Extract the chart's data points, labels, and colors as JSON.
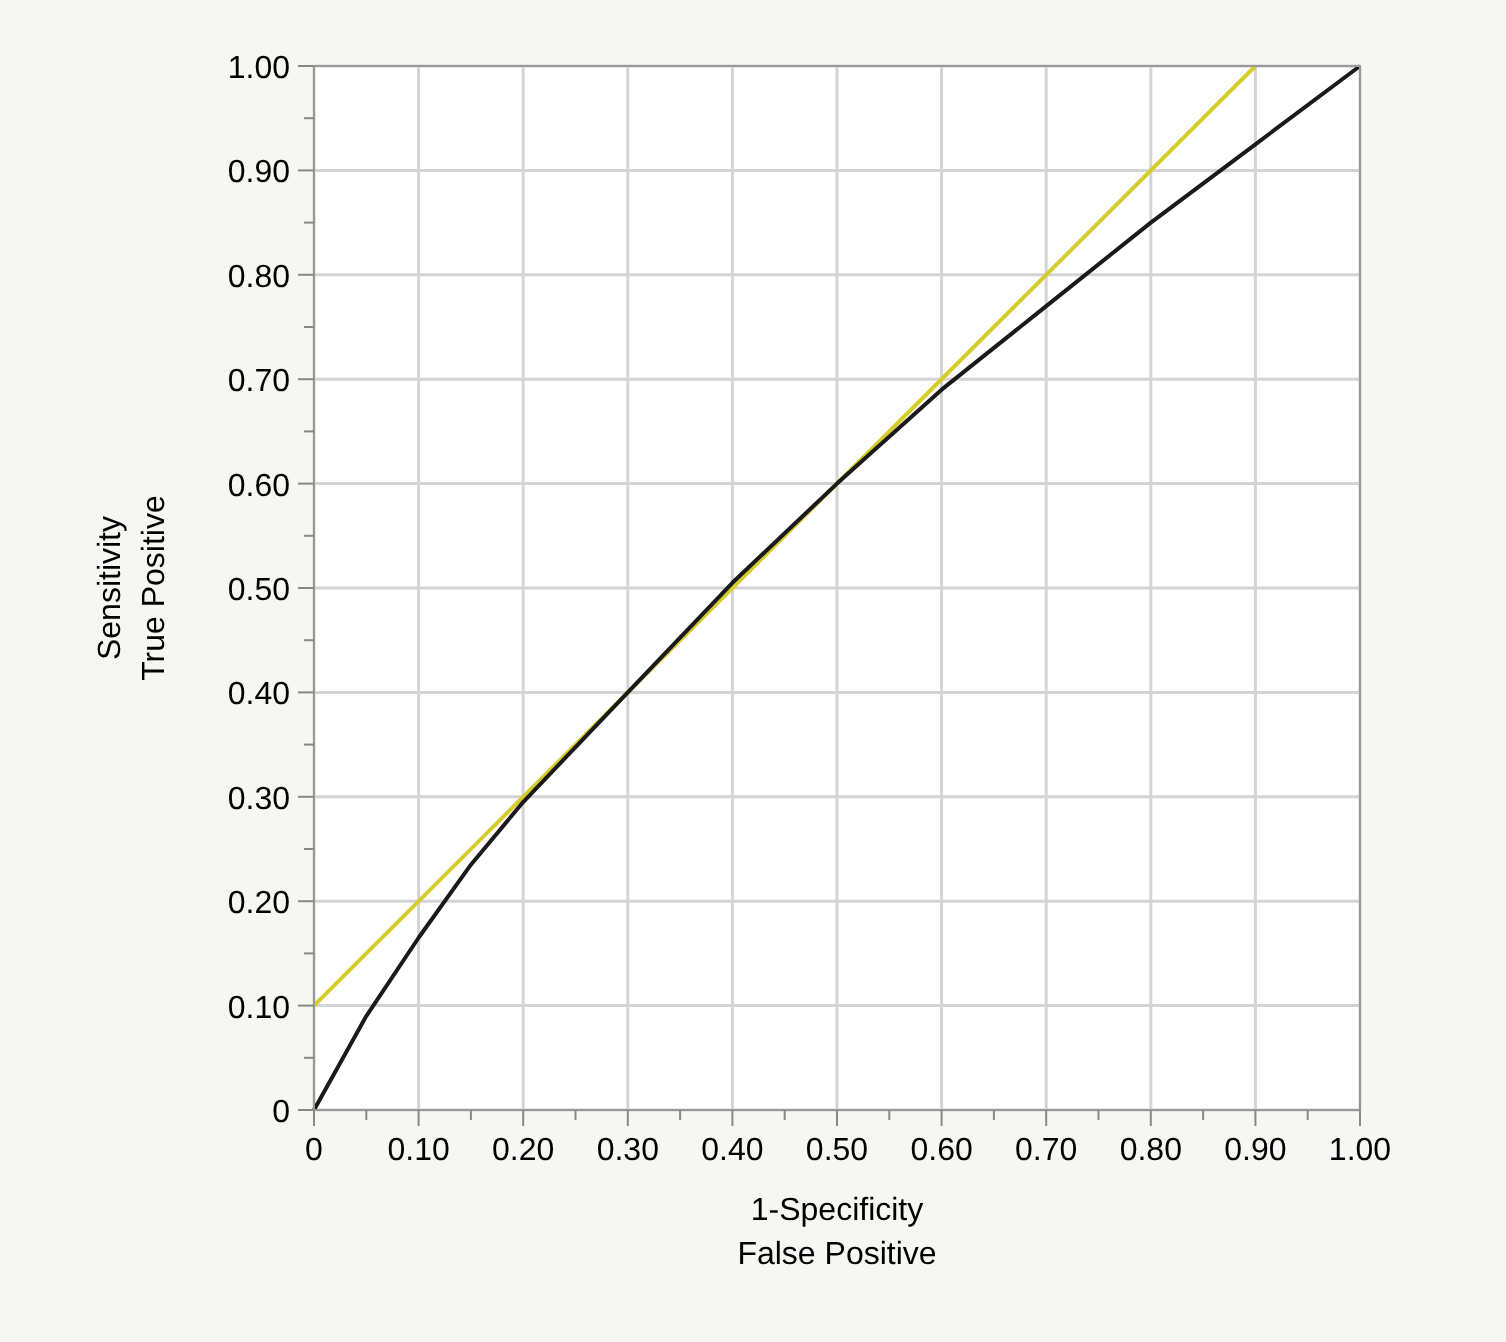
{
  "chart_data": {
    "type": "line",
    "xlabel": "1-Specificity\nFalse Positive",
    "ylabel": "Sensitivity\nTrue Positive",
    "xlim": [
      0,
      1
    ],
    "ylim": [
      0,
      1
    ],
    "xticks": [
      {
        "value": 0,
        "label": "0"
      },
      {
        "value": 0.05,
        "label": null
      },
      {
        "value": 0.1,
        "label": "0.10"
      },
      {
        "value": 0.15,
        "label": null
      },
      {
        "value": 0.2,
        "label": "0.20"
      },
      {
        "value": 0.25,
        "label": null
      },
      {
        "value": 0.3,
        "label": "0.30"
      },
      {
        "value": 0.35,
        "label": null
      },
      {
        "value": 0.4,
        "label": "0.40"
      },
      {
        "value": 0.45,
        "label": null
      },
      {
        "value": 0.5,
        "label": "0.50"
      },
      {
        "value": 0.55,
        "label": null
      },
      {
        "value": 0.6,
        "label": "0.60"
      },
      {
        "value": 0.65,
        "label": null
      },
      {
        "value": 0.7,
        "label": "0.70"
      },
      {
        "value": 0.75,
        "label": null
      },
      {
        "value": 0.8,
        "label": "0.80"
      },
      {
        "value": 0.85,
        "label": null
      },
      {
        "value": 0.9,
        "label": "0.90"
      },
      {
        "value": 0.95,
        "label": null
      },
      {
        "value": 1,
        "label": "1.00"
      }
    ],
    "yticks": [
      {
        "value": 0,
        "label": "0"
      },
      {
        "value": 0.05,
        "label": null
      },
      {
        "value": 0.1,
        "label": "0.10"
      },
      {
        "value": 0.15,
        "label": null
      },
      {
        "value": 0.2,
        "label": "0.20"
      },
      {
        "value": 0.25,
        "label": null
      },
      {
        "value": 0.3,
        "label": "0.30"
      },
      {
        "value": 0.35,
        "label": null
      },
      {
        "value": 0.4,
        "label": "0.40"
      },
      {
        "value": 0.45,
        "label": null
      },
      {
        "value": 0.5,
        "label": "0.50"
      },
      {
        "value": 0.55,
        "label": null
      },
      {
        "value": 0.6,
        "label": "0.60"
      },
      {
        "value": 0.65,
        "label": null
      },
      {
        "value": 0.7,
        "label": "0.70"
      },
      {
        "value": 0.75,
        "label": null
      },
      {
        "value": 0.8,
        "label": "0.80"
      },
      {
        "value": 0.85,
        "label": null
      },
      {
        "value": 0.9,
        "label": "0.90"
      },
      {
        "value": 0.95,
        "label": null
      },
      {
        "value": 1,
        "label": "1.00"
      }
    ],
    "grid": true,
    "marker": "none",
    "line_style": "solid",
    "series": [
      {
        "color": "#d6cc2c",
        "x": [
          0,
          0.9
        ],
        "values": [
          0.1,
          1
        ]
      },
      {
        "color": "#1a1a1a",
        "x": [
          0,
          0.05,
          0.1,
          0.15,
          0.2,
          0.3,
          0.4,
          0.5,
          0.6,
          0.7,
          0.8,
          0.9,
          1
        ],
        "values": [
          0,
          0.09,
          0.165,
          0.235,
          0.295,
          0.4,
          0.505,
          0.6,
          0.69,
          0.77,
          0.85,
          0.925,
          1
        ]
      }
    ]
  }
}
